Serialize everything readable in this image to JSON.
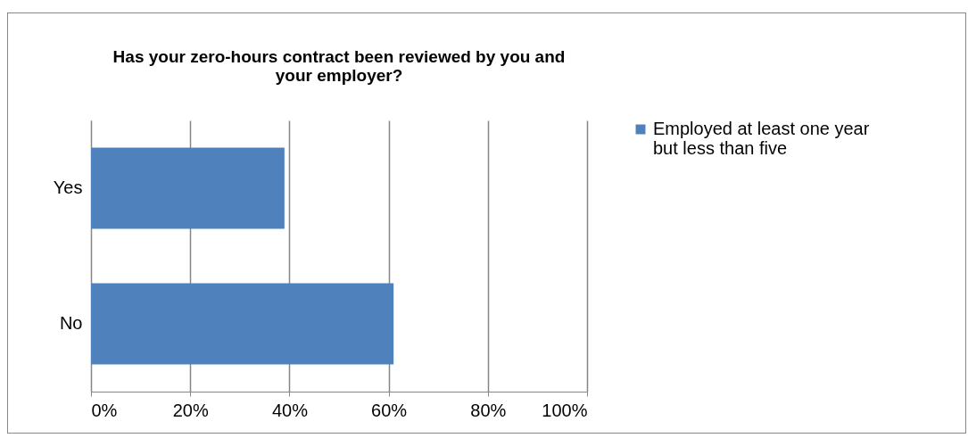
{
  "chart_data": {
    "type": "bar",
    "orientation": "horizontal",
    "title": "Has your zero-hours contract been reviewed by you and your employer?",
    "categories": [
      "Yes",
      "No"
    ],
    "series": [
      {
        "name": "Employed at least one year but less than five",
        "color": "#4f81bd",
        "values": [
          39,
          61
        ]
      }
    ],
    "xlim": [
      0,
      100
    ],
    "xticks": [
      {
        "value": 0,
        "label": "0%"
      },
      {
        "value": 20,
        "label": "20%"
      },
      {
        "value": 40,
        "label": "40%"
      },
      {
        "value": 60,
        "label": "60%"
      },
      {
        "value": 80,
        "label": "80%"
      },
      {
        "value": 100,
        "label": "100%"
      }
    ],
    "grid": "x",
    "legend": "right"
  }
}
